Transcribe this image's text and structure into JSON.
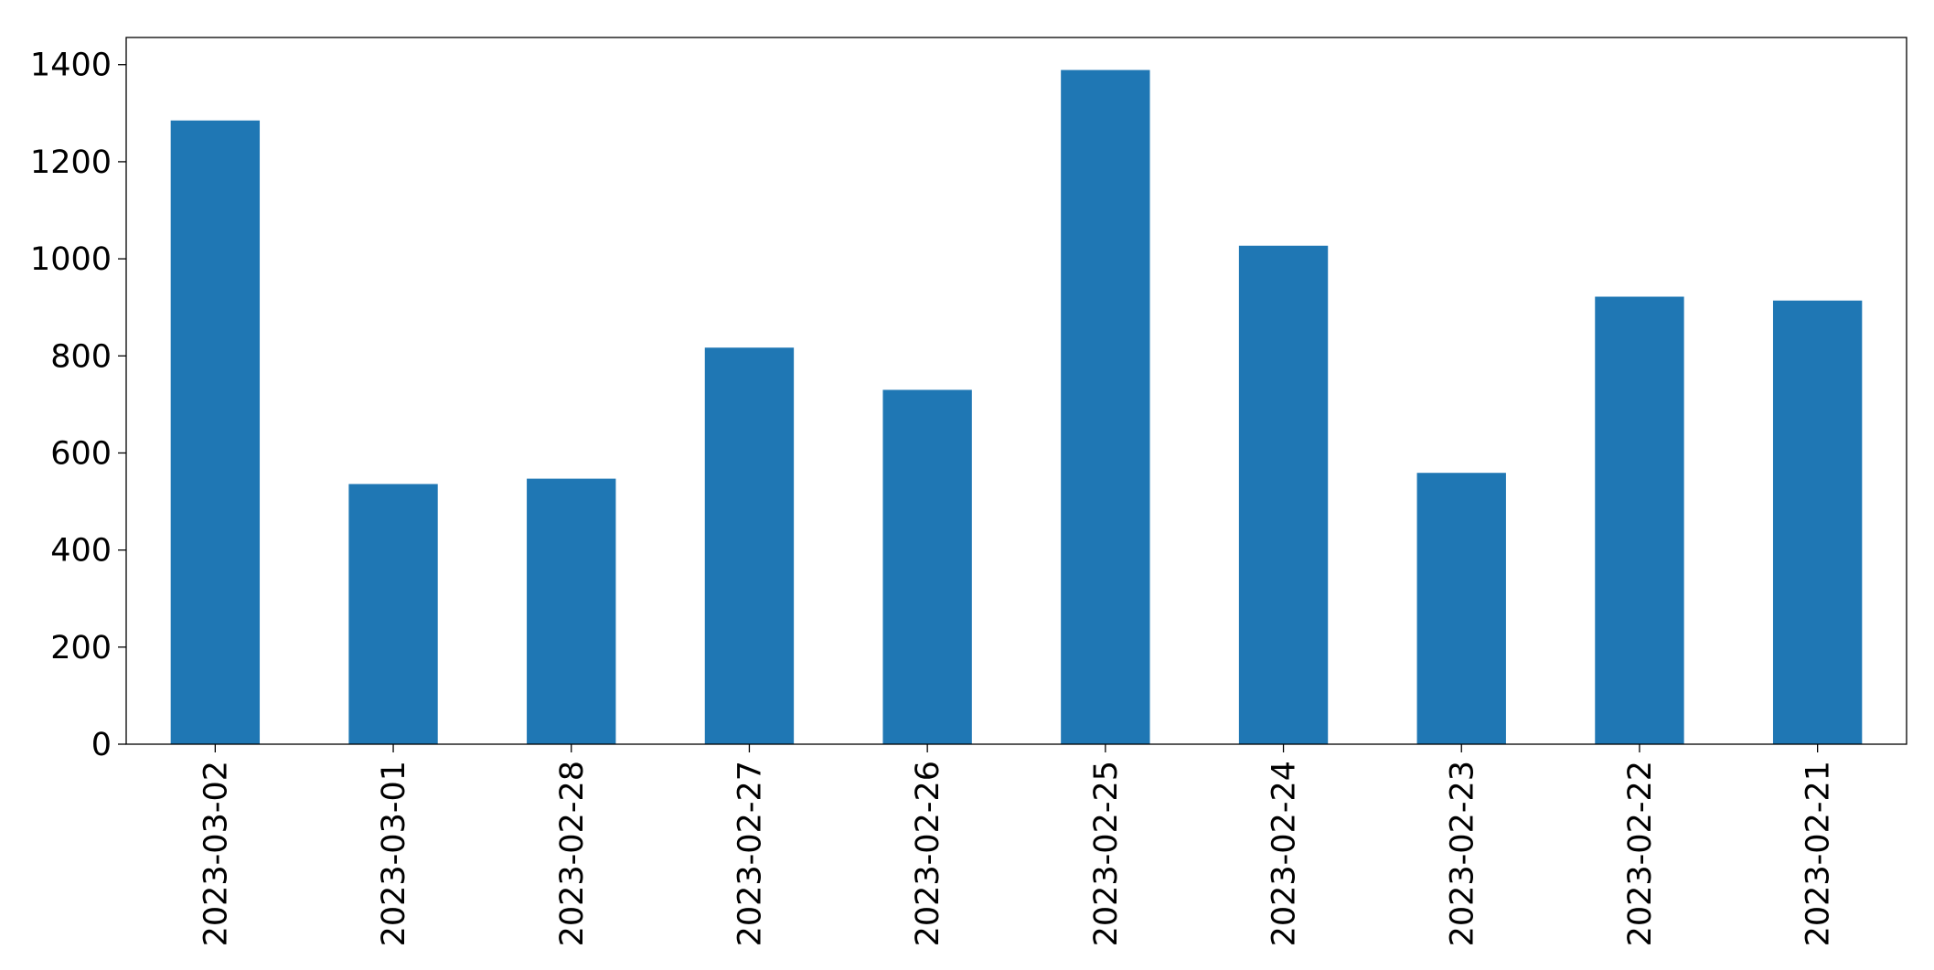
{
  "chart_data": {
    "type": "bar",
    "categories": [
      "2023-03-02",
      "2023-03-01",
      "2023-02-28",
      "2023-02-27",
      "2023-02-26",
      "2023-02-25",
      "2023-02-24",
      "2023-02-23",
      "2023-02-22",
      "2023-02-21"
    ],
    "values": [
      1285,
      536,
      547,
      817,
      730,
      1389,
      1027,
      559,
      922,
      914
    ],
    "color": "#1f77b4",
    "ylim": [
      0,
      1456
    ],
    "yticks": [
      0,
      200,
      400,
      600,
      800,
      1000,
      1200,
      1400
    ],
    "grid": false
  }
}
